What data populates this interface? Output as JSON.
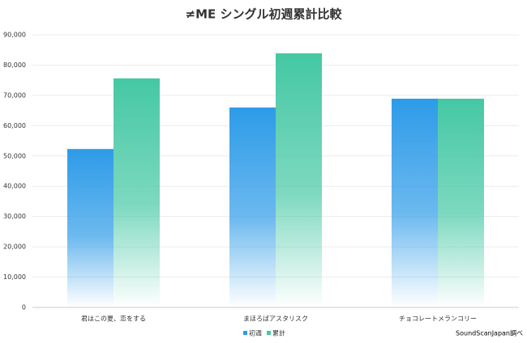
{
  "chart_data": {
    "type": "bar",
    "title": "≠ME シングル初週累計比較",
    "categories": [
      "君はこの夏、恋をする",
      "まほろばアスタリスク",
      "チョコレートメランコリー"
    ],
    "series": [
      {
        "name": "初週",
        "color": "#2d9be8",
        "values": [
          52300,
          66000,
          68900
        ]
      },
      {
        "name": "累計",
        "color": "#45c8a4",
        "values": [
          75600,
          83900,
          68900
        ]
      }
    ],
    "ylim": [
      0,
      90000
    ],
    "yticks": [
      0,
      {
        "value": 10000,
        "label": "10,000"
      },
      {
        "value": 20000,
        "label": "20,000"
      },
      {
        "value": 30000,
        "label": "30,000"
      },
      {
        "value": 40000,
        "label": "40,000"
      },
      {
        "value": 50000,
        "label": "50,000"
      },
      {
        "value": 60000,
        "label": "60,000"
      },
      {
        "value": 70000,
        "label": "70,000"
      },
      {
        "value": 80000,
        "label": "80,000"
      },
      {
        "value": 90000,
        "label": "90,000"
      }
    ],
    "grid": true,
    "legend": "bottom",
    "source": "SoundScanJapan調べ"
  }
}
